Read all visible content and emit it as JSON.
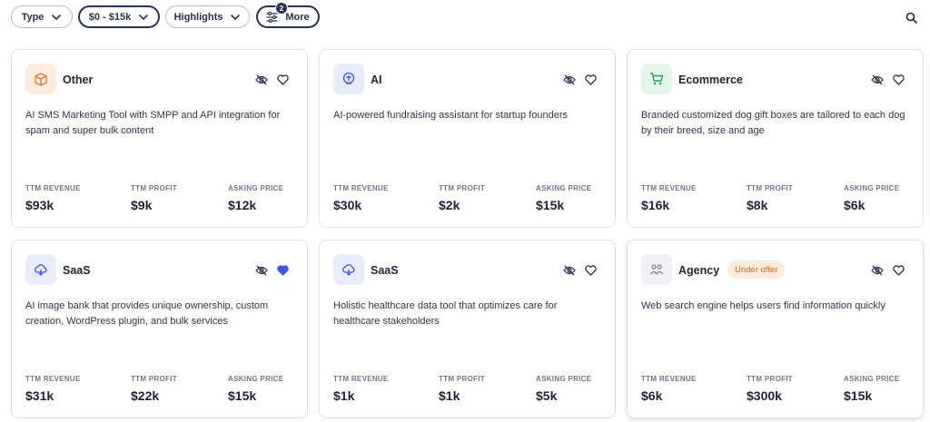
{
  "filters": {
    "type_label": "Type",
    "price_label": "$0 - $15k",
    "highlights_label": "Highlights",
    "more_label": "More",
    "more_count": "2"
  },
  "colors": {
    "accent": "#2c3159",
    "favorite": "#4254e8",
    "offer_bg": "#fdecdc",
    "offer_text": "#d2691e"
  },
  "listings": [
    {
      "category": "Other",
      "icon": "box-icon",
      "description": "AI SMS Marketing Tool with SMPP and API integration for spam and super bulk content",
      "revenue_label": "TTM REVENUE",
      "revenue": "$93k",
      "profit_label": "TTM PROFIT",
      "profit": "$9k",
      "price_label": "ASKING PRICE",
      "price": "$12k",
      "favorited": false
    },
    {
      "category": "AI",
      "icon": "brain-icon",
      "description": "AI-powered fundraising assistant for startup founders",
      "revenue_label": "TTM REVENUE",
      "revenue": "$30k",
      "profit_label": "TTM PROFIT",
      "profit": "$2k",
      "price_label": "ASKING PRICE",
      "price": "$15k",
      "favorited": false
    },
    {
      "category": "Ecommerce",
      "icon": "cart-icon",
      "description": "Branded customized dog gift boxes are tailored to each dog by their breed, size and age",
      "revenue_label": "TTM REVENUE",
      "revenue": "$16k",
      "profit_label": "TTM PROFIT",
      "profit": "$8k",
      "price_label": "ASKING PRICE",
      "price": "$6k",
      "favorited": false
    },
    {
      "category": "SaaS",
      "icon": "cloud-icon",
      "description": "AI image bank that provides unique ownership, custom creation, WordPress plugin, and bulk services",
      "revenue_label": "TTM REVENUE",
      "revenue": "$31k",
      "profit_label": "TTM PROFIT",
      "profit": "$22k",
      "price_label": "ASKING PRICE",
      "price": "$15k",
      "favorited": true
    },
    {
      "category": "SaaS",
      "icon": "cloud-icon",
      "description": "Holistic healthcare data tool that optimizes care for healthcare stakeholders",
      "revenue_label": "TTM REVENUE",
      "revenue": "$1k",
      "profit_label": "TTM PROFIT",
      "profit": "$1k",
      "price_label": "ASKING PRICE",
      "price": "$5k",
      "favorited": false
    },
    {
      "category": "Agency",
      "icon": "team-icon",
      "status": "Under offer",
      "description": "Web search engine helps users find information quickly",
      "revenue_label": "TTM REVENUE",
      "revenue": "$6k",
      "profit_label": "TTM PROFIT",
      "profit": "$300k",
      "price_label": "ASKING PRICE",
      "price": "$15k",
      "favorited": false
    }
  ]
}
